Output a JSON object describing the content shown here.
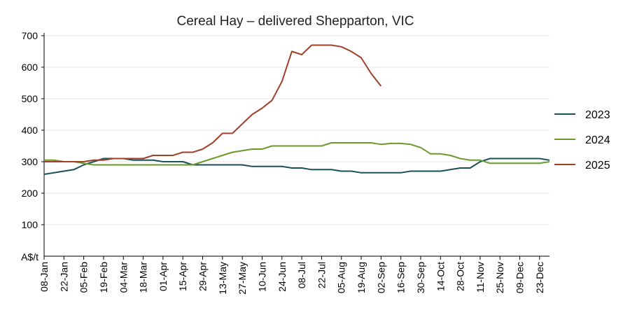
{
  "chart_data": {
    "type": "line",
    "title": "Cereal Hay – delivered Shepparton, VIC",
    "ylabel": "A$/t",
    "ylim": [
      0,
      700
    ],
    "yticks": [
      "100",
      "200",
      "300",
      "400",
      "500",
      "600",
      "700"
    ],
    "y_tick_values": [
      100,
      200,
      300,
      400,
      500,
      600,
      700
    ],
    "grid": "horizontal",
    "legend_position": "right",
    "x": [
      "08-Jan",
      "15-Jan",
      "22-Jan",
      "29-Jan",
      "05-Feb",
      "12-Feb",
      "19-Feb",
      "26-Feb",
      "04-Mar",
      "11-Mar",
      "18-Mar",
      "25-Mar",
      "01-Apr",
      "08-Apr",
      "15-Apr",
      "22-Apr",
      "29-Apr",
      "06-May",
      "13-May",
      "20-May",
      "27-May",
      "03-Jun",
      "10-Jun",
      "17-Jun",
      "24-Jun",
      "01-Jul",
      "08-Jul",
      "15-Jul",
      "22-Jul",
      "29-Jul",
      "05-Aug",
      "12-Aug",
      "19-Aug",
      "26-Aug",
      "02-Sep",
      "09-Sep",
      "16-Sep",
      "23-Sep",
      "30-Sep",
      "07-Oct",
      "14-Oct",
      "21-Oct",
      "28-Oct",
      "04-Nov",
      "11-Nov",
      "18-Nov",
      "25-Nov",
      "02-Dec",
      "09-Dec",
      "16-Dec",
      "23-Dec",
      "30-Dec"
    ],
    "xticks": [
      "08-Jan",
      "22-Jan",
      "05-Feb",
      "19-Feb",
      "04-Mar",
      "18-Mar",
      "01-Apr",
      "15-Apr",
      "29-Apr",
      "13-May",
      "27-May",
      "10-Jun",
      "24-Jun",
      "08-Jul",
      "22-Jul",
      "05-Aug",
      "19-Aug",
      "02-Sep",
      "16-Sep",
      "30-Sep",
      "14-Oct",
      "28-Oct",
      "11-Nov",
      "25-Nov",
      "09-Dec",
      "23-Dec"
    ],
    "series": [
      {
        "name": "2023",
        "color": "#1b4f5a",
        "values": [
          260,
          265,
          270,
          275,
          290,
          300,
          310,
          310,
          310,
          305,
          305,
          305,
          300,
          300,
          300,
          290,
          290,
          290,
          290,
          290,
          290,
          285,
          285,
          285,
          285,
          280,
          280,
          275,
          275,
          275,
          270,
          270,
          265,
          265,
          265,
          265,
          265,
          270,
          270,
          270,
          270,
          275,
          280,
          280,
          300,
          310,
          310,
          310,
          310,
          310,
          310,
          305
        ]
      },
      {
        "name": "2024",
        "color": "#6a9a2a",
        "values": [
          305,
          305,
          300,
          300,
          295,
          290,
          290,
          290,
          290,
          290,
          290,
          290,
          290,
          290,
          290,
          290,
          300,
          310,
          320,
          330,
          335,
          340,
          340,
          350,
          350,
          350,
          350,
          350,
          350,
          360,
          360,
          360,
          360,
          360,
          355,
          358,
          358,
          355,
          345,
          325,
          325,
          320,
          310,
          305,
          305,
          295,
          295,
          295,
          295,
          295,
          295,
          300
        ]
      },
      {
        "name": "2025",
        "color": "#a0402a",
        "values": [
          300,
          300,
          300,
          300,
          300,
          305,
          305,
          310,
          310,
          310,
          310,
          320,
          320,
          320,
          330,
          330,
          340,
          360,
          390,
          390,
          420,
          450,
          470,
          495,
          555,
          650,
          640,
          670,
          670,
          670,
          665,
          650,
          630,
          580,
          540,
          null,
          null,
          null,
          null,
          null,
          null,
          null,
          null,
          null,
          null,
          null,
          null,
          null,
          null,
          null,
          null,
          null
        ]
      }
    ]
  }
}
